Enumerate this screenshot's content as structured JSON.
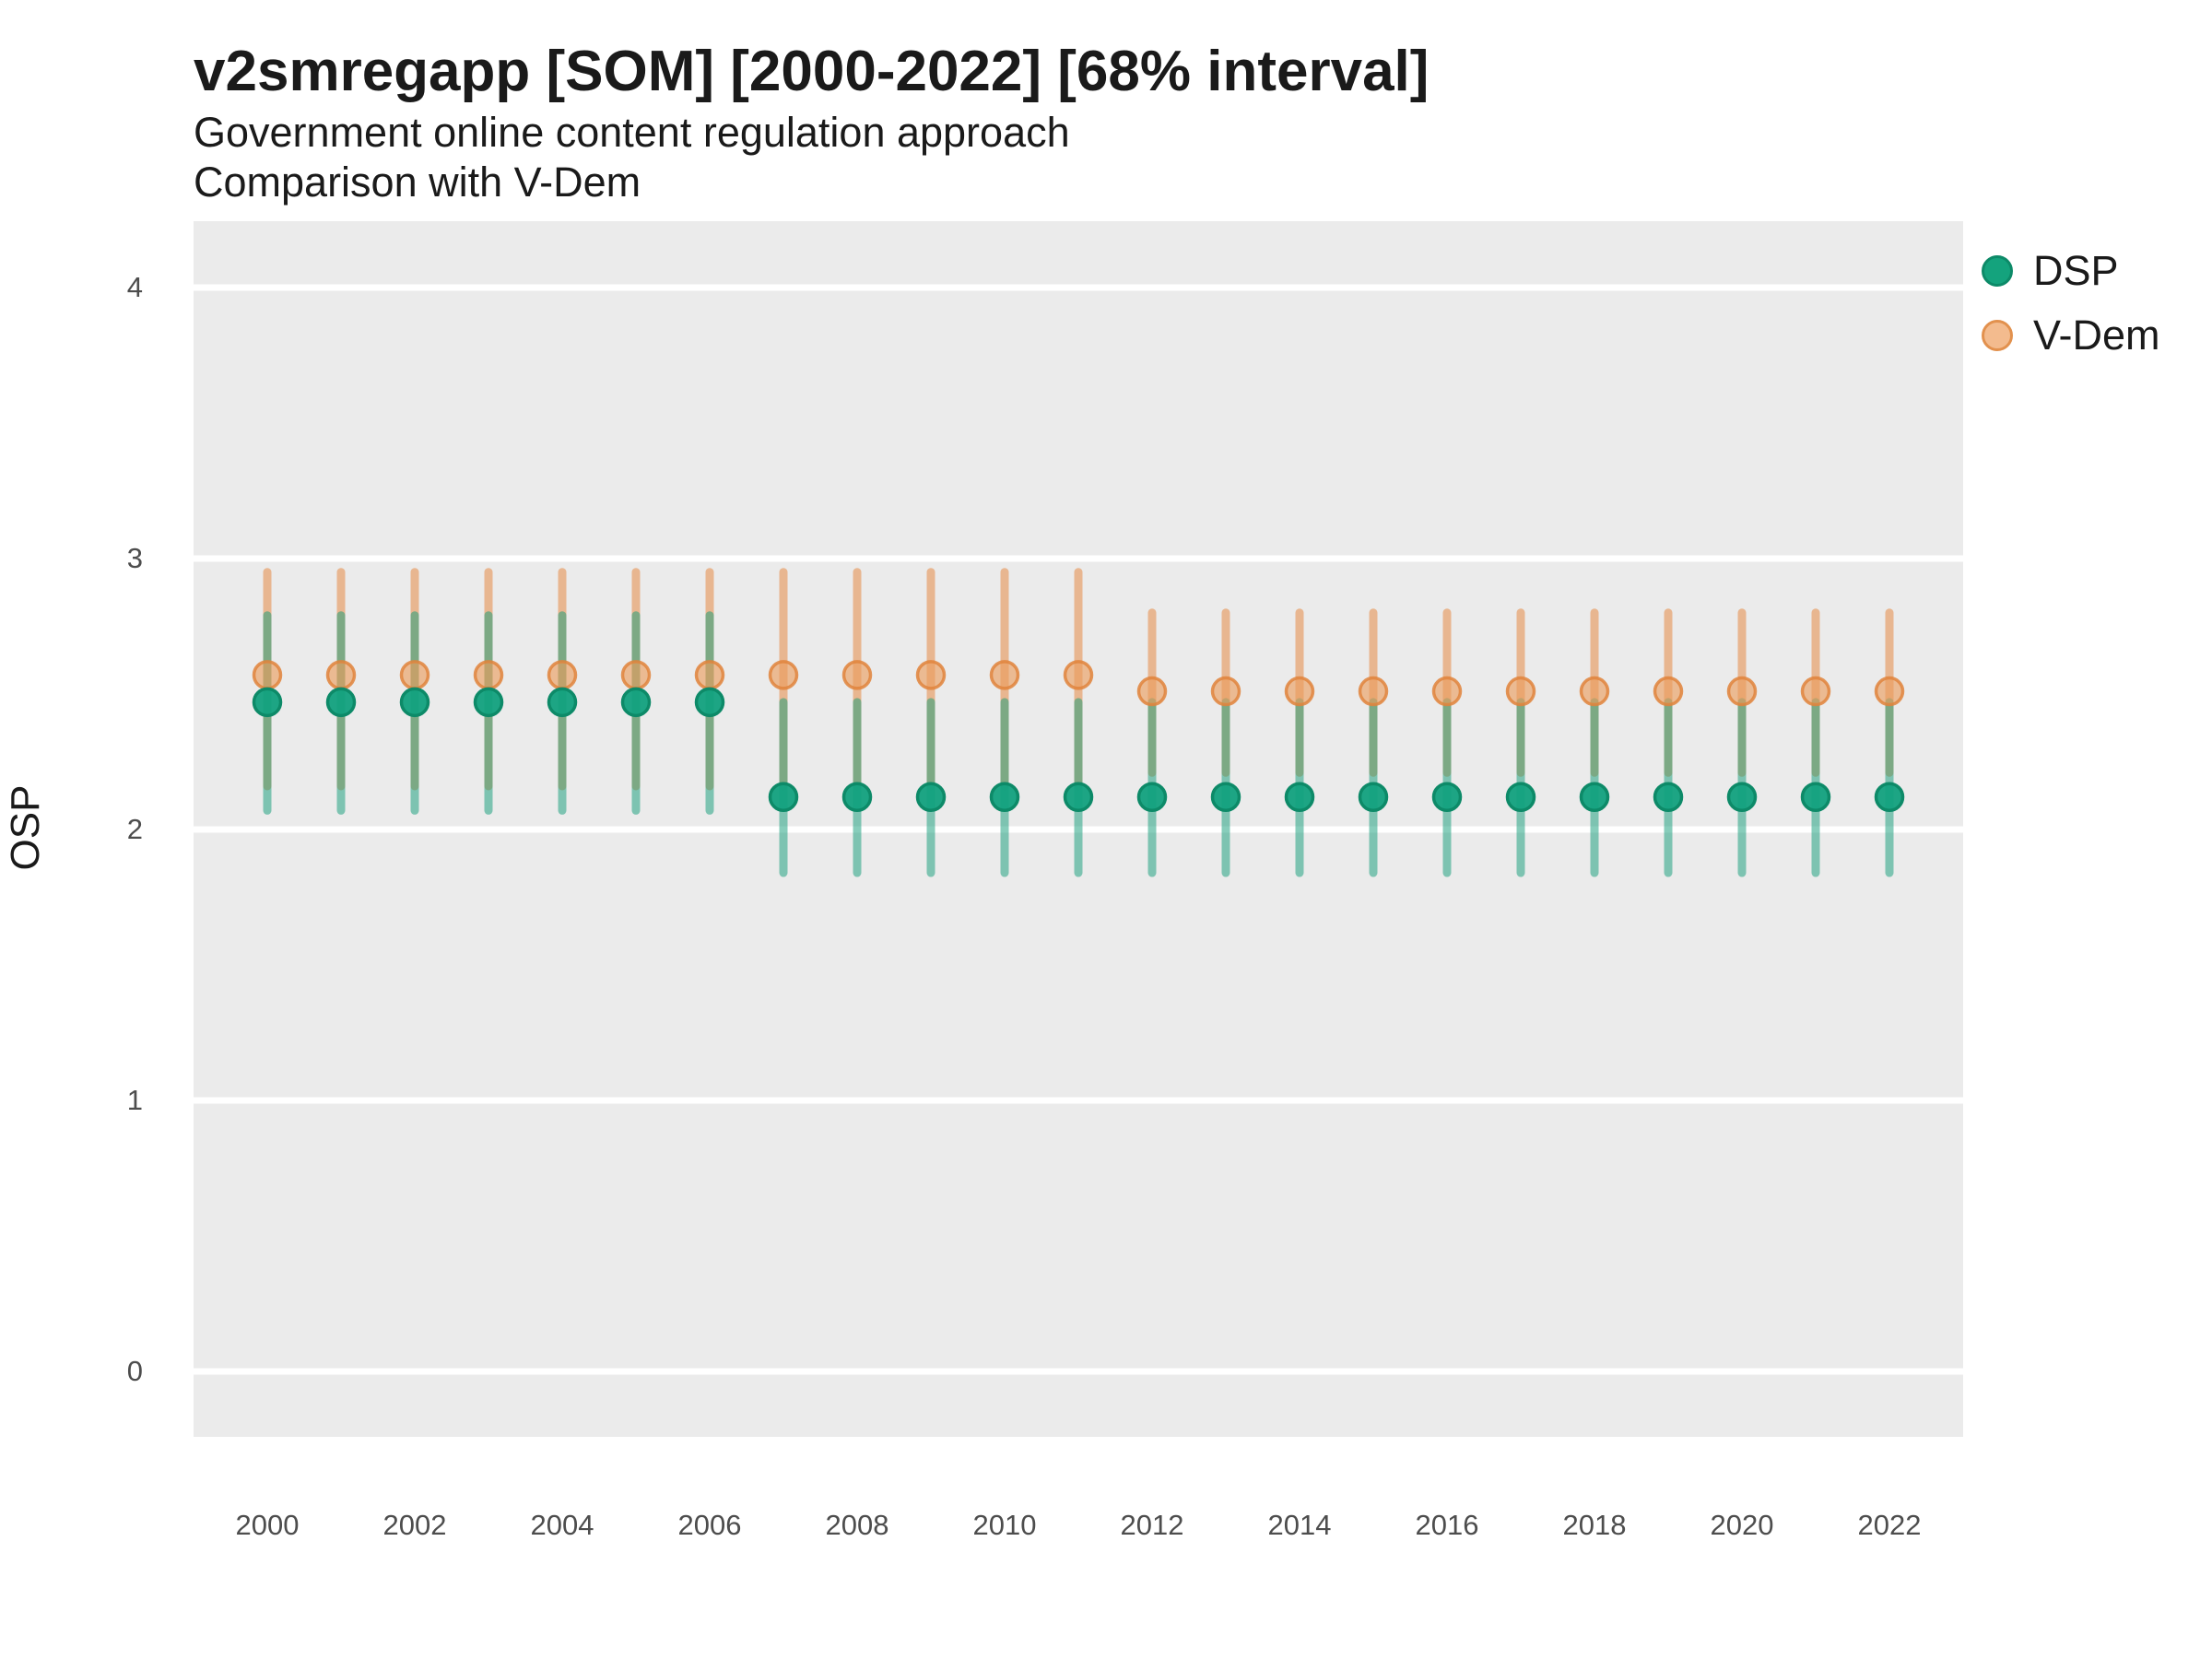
{
  "header": {
    "title": "v2smregapp [SOM] [2000-2022] [68% interval]",
    "subtitle_line1": "Government online content regulation approach",
    "subtitle_line2": "Comparison with V-Dem"
  },
  "y_axis": {
    "label": "OSP"
  },
  "legend": {
    "items": [
      {
        "label": "DSP",
        "color": "#14a37d"
      },
      {
        "label": "V-Dem",
        "color": "#f3bb8e"
      }
    ]
  },
  "colors": {
    "panel_background": "#ebebeb",
    "gridline": "#ffffff",
    "dsp_point": "#12a17e",
    "dsp_point_ring": "#0d8a68",
    "dsp_bar": "rgba(16,155,119,0.50)",
    "vdem_point": "#ec9c5c",
    "vdem_point_ring": "#e1843c",
    "vdem_bar": "rgba(230,138,70,0.55)"
  },
  "chart_data": {
    "type": "pointrange",
    "title": "v2smregapp [SOM] [2000-2022] [68% interval]",
    "subtitle": [
      "Government online content regulation approach",
      "Comparison with V-Dem"
    ],
    "interval": "68%",
    "xlabel": "",
    "ylabel": "OSP",
    "ylim": [
      -0.24,
      4.24
    ],
    "yticks": [
      0,
      1,
      2,
      3,
      4
    ],
    "xtick_labels": [
      2000,
      2002,
      2004,
      2006,
      2008,
      2010,
      2012,
      2014,
      2016,
      2018,
      2020,
      2022
    ],
    "grid": "horizontal-white-on-grey",
    "legend_position": "right-top",
    "x": [
      2000,
      2001,
      2002,
      2003,
      2004,
      2005,
      2006,
      2007,
      2008,
      2009,
      2010,
      2011,
      2012,
      2013,
      2014,
      2015,
      2016,
      2017,
      2018,
      2019,
      2020,
      2021,
      2022
    ],
    "series": [
      {
        "name": "DSP",
        "est": [
          2.47,
          2.47,
          2.47,
          2.47,
          2.47,
          2.47,
          2.47,
          2.12,
          2.12,
          2.12,
          2.12,
          2.12,
          2.12,
          2.12,
          2.12,
          2.12,
          2.12,
          2.12,
          2.12,
          2.12,
          2.12,
          2.12,
          2.12
        ],
        "lo": [
          2.07,
          2.07,
          2.07,
          2.07,
          2.07,
          2.07,
          2.07,
          1.84,
          1.84,
          1.84,
          1.84,
          1.84,
          1.84,
          1.84,
          1.84,
          1.84,
          1.84,
          1.84,
          1.84,
          1.84,
          1.84,
          1.84,
          1.84
        ],
        "hi": [
          2.79,
          2.79,
          2.79,
          2.79,
          2.79,
          2.79,
          2.79,
          2.47,
          2.47,
          2.47,
          2.47,
          2.47,
          2.47,
          2.47,
          2.47,
          2.47,
          2.47,
          2.47,
          2.47,
          2.47,
          2.47,
          2.47,
          2.47
        ]
      },
      {
        "name": "V-Dem",
        "est": [
          2.57,
          2.57,
          2.57,
          2.57,
          2.57,
          2.57,
          2.57,
          2.57,
          2.57,
          2.57,
          2.57,
          2.57,
          2.51,
          2.51,
          2.51,
          2.51,
          2.51,
          2.51,
          2.51,
          2.51,
          2.51,
          2.51,
          2.51
        ],
        "lo": [
          2.16,
          2.16,
          2.16,
          2.16,
          2.16,
          2.16,
          2.16,
          2.16,
          2.16,
          2.16,
          2.16,
          2.16,
          2.21,
          2.21,
          2.21,
          2.21,
          2.21,
          2.21,
          2.21,
          2.21,
          2.21,
          2.21,
          2.21
        ],
        "hi": [
          2.95,
          2.95,
          2.95,
          2.95,
          2.95,
          2.95,
          2.95,
          2.95,
          2.95,
          2.95,
          2.95,
          2.95,
          2.8,
          2.8,
          2.8,
          2.8,
          2.8,
          2.8,
          2.8,
          2.8,
          2.8,
          2.8,
          2.8
        ]
      }
    ]
  }
}
